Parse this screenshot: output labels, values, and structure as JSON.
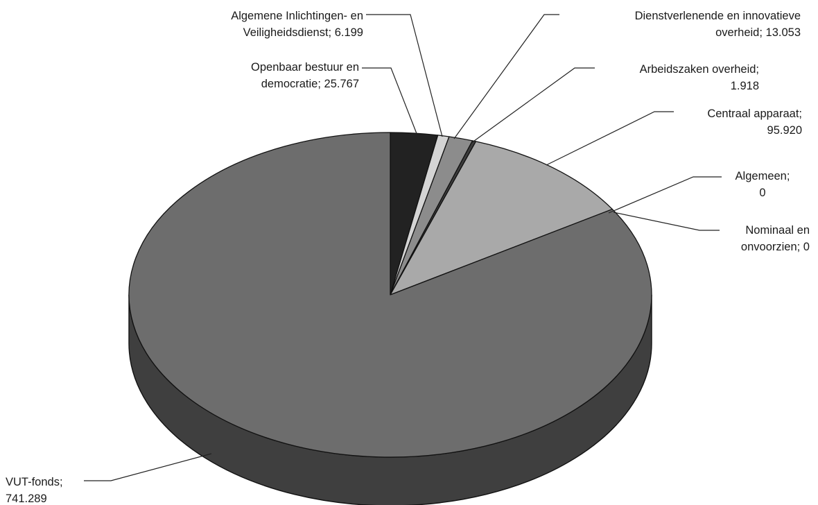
{
  "chart_data": {
    "type": "pie",
    "style": "3d-exploded-none",
    "title": "",
    "series": [
      {
        "name": "",
        "slices": [
          {
            "label": "Openbaar bestuur en democratie",
            "value": 25767,
            "value_text": "25.767",
            "color": "#222222"
          },
          {
            "label": "Algemene Inlichtingen- en Veiligheidsdienst",
            "value": 6199,
            "value_text": "6.199",
            "color": "#d4d4d4"
          },
          {
            "label": "Dienstverlenende en innovatieve overheid",
            "value": 13053,
            "value_text": "13.053",
            "color": "#8c8c8c"
          },
          {
            "label": "Arbeidszaken overheid",
            "value": 1918,
            "value_text": "1.918",
            "color": "#3c3c3c"
          },
          {
            "label": "Centraal apparaat",
            "value": 95920,
            "value_text": "95.920",
            "color": "#a9a9a9"
          },
          {
            "label": "Algemeen",
            "value": 0,
            "value_text": "0",
            "color": "#9a9a9a"
          },
          {
            "label": "Nominaal en onvoorzien",
            "value": 0,
            "value_text": "0",
            "color": "#b5b5b5"
          },
          {
            "label": "VUT-fonds",
            "value": 741289,
            "value_text": "741.289",
            "color": "#6d6d6d"
          }
        ]
      }
    ],
    "labels": [
      {
        "lines": [
          "Algemene Inlichtingen- en",
          "Veiligheidsdienst; 6.199"
        ],
        "slice": 1
      },
      {
        "lines": [
          "Openbaar bestuur en",
          "democratie; 25.767"
        ],
        "slice": 0
      },
      {
        "lines": [
          "Dienstverlenende en innovatieve",
          "overheid; 13.053"
        ],
        "slice": 2
      },
      {
        "lines": [
          "Arbeidszaken overheid;",
          "1.918"
        ],
        "slice": 3
      },
      {
        "lines": [
          "Centraal apparaat;",
          "95.920"
        ],
        "slice": 4
      },
      {
        "lines": [
          "Algemeen;",
          "0"
        ],
        "slice": 5
      },
      {
        "lines": [
          "Nominaal en",
          "onvoorzien; 0"
        ],
        "slice": 6
      },
      {
        "lines": [
          "VUT-fonds;",
          "741.289"
        ],
        "slice": 7
      }
    ],
    "colors": {
      "side": "#3f3f3f",
      "outline": "#111111",
      "leader": "#222222"
    }
  }
}
